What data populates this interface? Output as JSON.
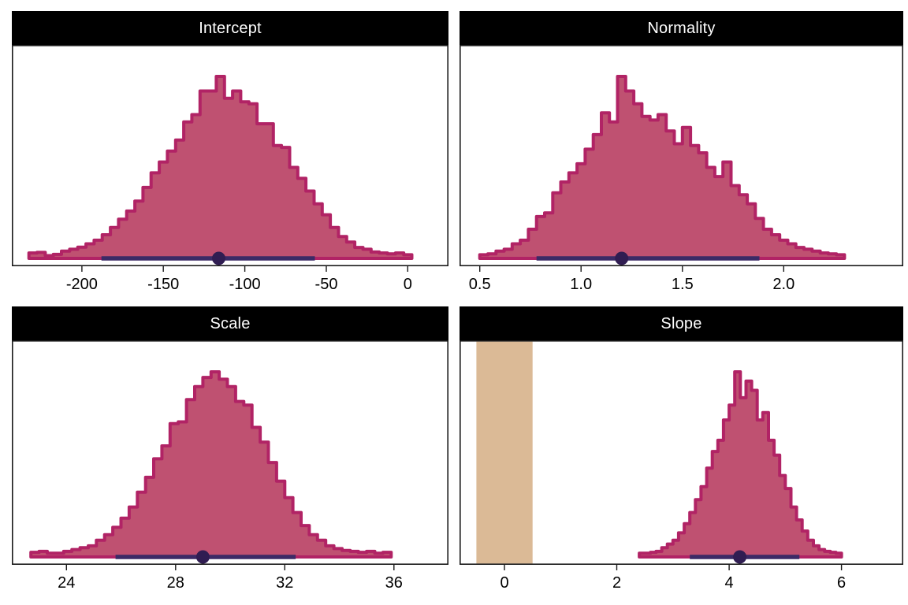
{
  "figure": {
    "description": "2x2 faceted posterior distribution histograms with HDI bars and ROPE band",
    "facets": [
      "Intercept",
      "Normality",
      "Scale",
      "Slope"
    ]
  },
  "style": {
    "hist_fill": "#bf5171",
    "hist_outline": "#b12365",
    "ci_bar": "#3b2a66",
    "ci_point": "#301d52",
    "rope_fill": "#dbba96",
    "strip_bg": "#000000",
    "strip_text": "#ffffff",
    "axis": "#1a1a1a",
    "background": "#ffffff"
  },
  "chart_data": [
    {
      "type": "bar",
      "subtype": "histogram",
      "title": "Intercept",
      "x_range": [
        -243,
        25
      ],
      "x_ticks": [
        -200,
        -150,
        -100,
        -50,
        0
      ],
      "tick_labels": [
        "-200",
        "-150",
        "-100",
        "-50",
        "0"
      ],
      "bin_start": -232.5,
      "bin_width": 5,
      "heights": [
        0.03,
        0.033,
        0.015,
        0.022,
        0.04,
        0.05,
        0.062,
        0.08,
        0.1,
        0.13,
        0.17,
        0.215,
        0.26,
        0.315,
        0.39,
        0.47,
        0.53,
        0.59,
        0.65,
        0.75,
        0.79,
        0.92,
        0.92,
        1.0,
        0.88,
        0.92,
        0.86,
        0.85,
        0.74,
        0.74,
        0.62,
        0.61,
        0.5,
        0.44,
        0.37,
        0.3,
        0.24,
        0.17,
        0.12,
        0.09,
        0.06,
        0.05,
        0.035,
        0.03,
        0.025,
        0.03,
        0.02
      ],
      "ci": {
        "low": -188,
        "high": -57,
        "median": -116
      }
    },
    {
      "type": "bar",
      "subtype": "histogram",
      "title": "Normality",
      "x_range": [
        0.4,
        2.59
      ],
      "x_ticks": [
        0.5,
        1.0,
        1.5,
        2.0
      ],
      "tick_labels": [
        "0.5",
        "1.0",
        "1.5",
        "2.0"
      ],
      "bin_start": 0.5,
      "bin_width": 0.04,
      "heights": [
        0.02,
        0.025,
        0.04,
        0.05,
        0.08,
        0.1,
        0.16,
        0.23,
        0.25,
        0.36,
        0.42,
        0.47,
        0.52,
        0.6,
        0.68,
        0.8,
        0.75,
        1.0,
        0.92,
        0.85,
        0.78,
        0.76,
        0.79,
        0.7,
        0.63,
        0.72,
        0.62,
        0.58,
        0.5,
        0.45,
        0.53,
        0.4,
        0.35,
        0.3,
        0.22,
        0.16,
        0.13,
        0.1,
        0.08,
        0.06,
        0.05,
        0.04,
        0.03,
        0.025,
        0.02
      ],
      "ci": {
        "low": 0.78,
        "high": 1.88,
        "median": 1.2
      }
    },
    {
      "type": "bar",
      "subtype": "histogram",
      "title": "Scale",
      "x_range": [
        22.0,
        38.0
      ],
      "x_ticks": [
        24,
        28,
        32,
        36
      ],
      "tick_labels": [
        "24",
        "28",
        "32",
        "36"
      ],
      "bin_start": 22.7,
      "bin_width": 0.3,
      "heights": [
        0.025,
        0.03,
        0.02,
        0.02,
        0.03,
        0.04,
        0.05,
        0.06,
        0.09,
        0.12,
        0.16,
        0.21,
        0.27,
        0.35,
        0.43,
        0.53,
        0.6,
        0.72,
        0.73,
        0.85,
        0.92,
        0.97,
        1.0,
        0.96,
        0.92,
        0.84,
        0.82,
        0.7,
        0.62,
        0.51,
        0.41,
        0.32,
        0.24,
        0.17,
        0.12,
        0.09,
        0.06,
        0.045,
        0.035,
        0.03,
        0.025,
        0.03,
        0.02,
        0.025
      ],
      "ci": {
        "low": 25.8,
        "high": 32.4,
        "median": 29.0
      }
    },
    {
      "type": "bar",
      "subtype": "histogram",
      "title": "Slope",
      "x_range": [
        -0.8,
        7.1
      ],
      "x_ticks": [
        0,
        2,
        4,
        6
      ],
      "tick_labels": [
        "0",
        "2",
        "4",
        "6"
      ],
      "bin_start": 2.4,
      "bin_width": 0.1,
      "heights": [
        0.02,
        0.02,
        0.025,
        0.03,
        0.05,
        0.07,
        0.09,
        0.13,
        0.18,
        0.24,
        0.31,
        0.38,
        0.48,
        0.57,
        0.63,
        0.74,
        0.82,
        1.0,
        0.86,
        0.95,
        0.9,
        0.74,
        0.78,
        0.63,
        0.55,
        0.44,
        0.37,
        0.27,
        0.2,
        0.14,
        0.09,
        0.06,
        0.04,
        0.03,
        0.025,
        0.02
      ],
      "ci": {
        "low": 3.3,
        "high": 5.25,
        "median": 4.19
      },
      "rope": {
        "low": -0.5,
        "high": 0.5
      }
    }
  ]
}
